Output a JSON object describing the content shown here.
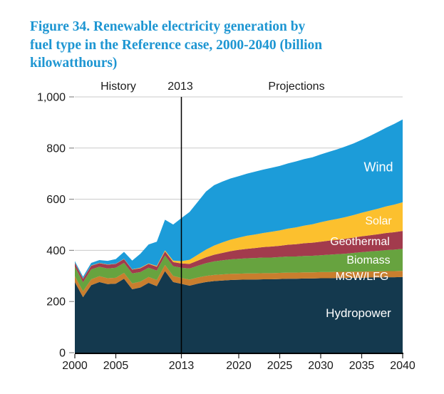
{
  "figure": {
    "title_lines": [
      "Figure 34. Renewable electricity generation by",
      "fuel type in the Reference case, 2000-2040 (billion",
      "kilowatthours)"
    ],
    "title_color": "#1E96D2"
  },
  "colors": {
    "axis_text": "#1a1a1a",
    "gridline": "#c9c9c9",
    "axis_line": "#000000",
    "divider_line": "#000000",
    "area_label_text": "#ffffff"
  },
  "chart_data": {
    "type": "area",
    "stacked": true,
    "title": "Figure 34. Renewable electricity generation by fuel type in the Reference case, 2000-2040 (billion kilowatthours)",
    "unit": "billion kilowatthours",
    "xlim": [
      2000,
      2040
    ],
    "ylim": [
      0,
      1000
    ],
    "grid": "horizontal",
    "legend": "labels-inside-areas",
    "annotations": {
      "history": "History",
      "projections": "Projections"
    },
    "divider": {
      "x": 2013,
      "label": "2013"
    },
    "xticks": {
      "values": [
        2000,
        2005,
        2013,
        2020,
        2025,
        2030,
        2035,
        2040
      ],
      "labels": [
        "2000",
        "2005",
        "2013",
        "2020",
        "2025",
        "2030",
        "2035",
        "2040"
      ]
    },
    "yticks": {
      "values": [
        0,
        200,
        400,
        600,
        800,
        1000
      ],
      "labels": [
        "0",
        "200",
        "400",
        "600",
        "800",
        "1,000"
      ]
    },
    "x": [
      2000,
      2001,
      2002,
      2003,
      2004,
      2005,
      2006,
      2007,
      2008,
      2009,
      2010,
      2011,
      2012,
      2013,
      2014,
      2015,
      2016,
      2017,
      2018,
      2019,
      2020,
      2021,
      2022,
      2023,
      2024,
      2025,
      2026,
      2027,
      2028,
      2029,
      2030,
      2031,
      2032,
      2033,
      2034,
      2035,
      2036,
      2037,
      2038,
      2039,
      2040
    ],
    "series": [
      {
        "name": "Hydropower",
        "color": "#14394E",
        "values": [
          276,
          217,
          264,
          276,
          268,
          270,
          289,
          248,
          255,
          273,
          260,
          319,
          276,
          269,
          262,
          270,
          276,
          280,
          282,
          284,
          285,
          286,
          286,
          287,
          287,
          288,
          289,
          289,
          290,
          290,
          291,
          291,
          292,
          292,
          293,
          293,
          294,
          294,
          295,
          295,
          296
        ]
      },
      {
        "name": "MSW/LFG",
        "color": "#C97E2E",
        "values": [
          23,
          23,
          23,
          23,
          23,
          23,
          23,
          23,
          23,
          23,
          24,
          24,
          24,
          23,
          24,
          24,
          24,
          24,
          24,
          24,
          24,
          24,
          24,
          24,
          24,
          24,
          24,
          24,
          24,
          24,
          24,
          24,
          24,
          24,
          24,
          24,
          24,
          24,
          24,
          24,
          24
        ]
      },
      {
        "name": "Biomass",
        "color": "#67A33F",
        "values": [
          38,
          35,
          39,
          37,
          38,
          39,
          39,
          39,
          37,
          36,
          37,
          37,
          38,
          40,
          43,
          46,
          50,
          53,
          55,
          57,
          58,
          59,
          60,
          61,
          61,
          62,
          63,
          63,
          64,
          65,
          66,
          68,
          69,
          71,
          73,
          76,
          78,
          80,
          82,
          84,
          86
        ]
      },
      {
        "name": "Geothermal",
        "color": "#A23B4D",
        "values": [
          14,
          14,
          14,
          14,
          15,
          15,
          15,
          15,
          15,
          15,
          15,
          16,
          16,
          17,
          18,
          20,
          23,
          26,
          29,
          32,
          35,
          37,
          39,
          41,
          43,
          44,
          46,
          48,
          50,
          51,
          53,
          55,
          56,
          58,
          60,
          62,
          63,
          65,
          67,
          68,
          70
        ]
      },
      {
        "name": "Solar",
        "color": "#FCC02E",
        "values": [
          1,
          1,
          1,
          1,
          1,
          1,
          1,
          1,
          2,
          2,
          3,
          4,
          6,
          9,
          16,
          23,
          30,
          36,
          41,
          45,
          48,
          51,
          53,
          55,
          58,
          60,
          63,
          66,
          69,
          72,
          76,
          79,
          82,
          85,
          88,
          92,
          96,
          100,
          104,
          108,
          112
        ]
      },
      {
        "name": "Wind",
        "color": "#1C9CD9",
        "values": [
          6,
          7,
          10,
          11,
          14,
          18,
          27,
          34,
          55,
          74,
          95,
          120,
          141,
          168,
          187,
          207,
          227,
          236,
          238,
          239,
          240,
          243,
          246,
          248,
          250,
          252,
          255,
          258,
          260,
          262,
          265,
          268,
          272,
          276,
          280,
          285,
          292,
          300,
          308,
          316,
          324
        ]
      }
    ]
  }
}
